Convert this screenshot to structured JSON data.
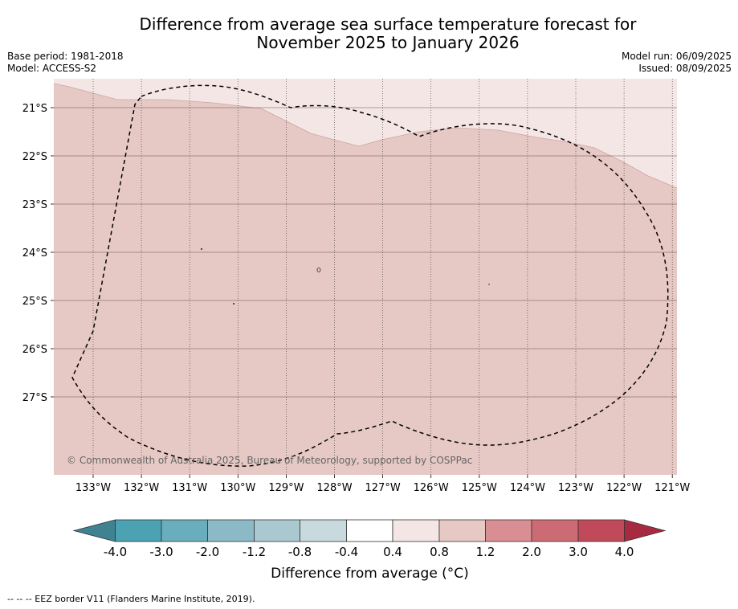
{
  "title": {
    "line1": "Difference from average sea surface temperature forecast for",
    "line2": "November 2025 to January 2026"
  },
  "meta": {
    "base_period": "Base period: 1981-2018",
    "model": "Model: ACCESS-S2",
    "model_run": "Model run: 06/09/2025",
    "issued": "Issued: 08/09/2025"
  },
  "map": {
    "lon_labels": [
      "133°W",
      "132°W",
      "131°W",
      "130°W",
      "129°W",
      "128°W",
      "127°W",
      "126°W",
      "125°W",
      "124°W",
      "123°W",
      "122°W",
      "121°W"
    ],
    "lat_labels": [
      "21°S",
      "22°S",
      "23°S",
      "24°S",
      "25°S",
      "26°S",
      "27°S"
    ],
    "copyright": "© Commonwealth of Australia 2025, Bureau of Meteorology, supported by COSPPac",
    "colors": {
      "anomaly_0_4_to_0_8": "#f4e6e5",
      "anomaly_0_8_to_1_2": "#e6c8c4",
      "eez_border": "#000000"
    }
  },
  "colorbar": {
    "ticks": [
      "-4.0",
      "-3.0",
      "-2.0",
      "-1.2",
      "-0.8",
      "-0.4",
      "0.4",
      "0.8",
      "1.2",
      "2.0",
      "3.0",
      "4.0"
    ],
    "colors": [
      "#4aa2b3",
      "#6aaebd",
      "#8bbac6",
      "#a9c8cf",
      "#c9dade",
      "#ffffff",
      "#f4e6e5",
      "#e6c8c4",
      "#d98e94",
      "#cd6b74",
      "#c04a59"
    ],
    "extend_low": "#3f8393",
    "extend_high": "#a82a40",
    "label": "Difference from average (°C)"
  },
  "footnote": "-- -- -- EEZ border V11 (Flanders Marine Institute, 2019)."
}
